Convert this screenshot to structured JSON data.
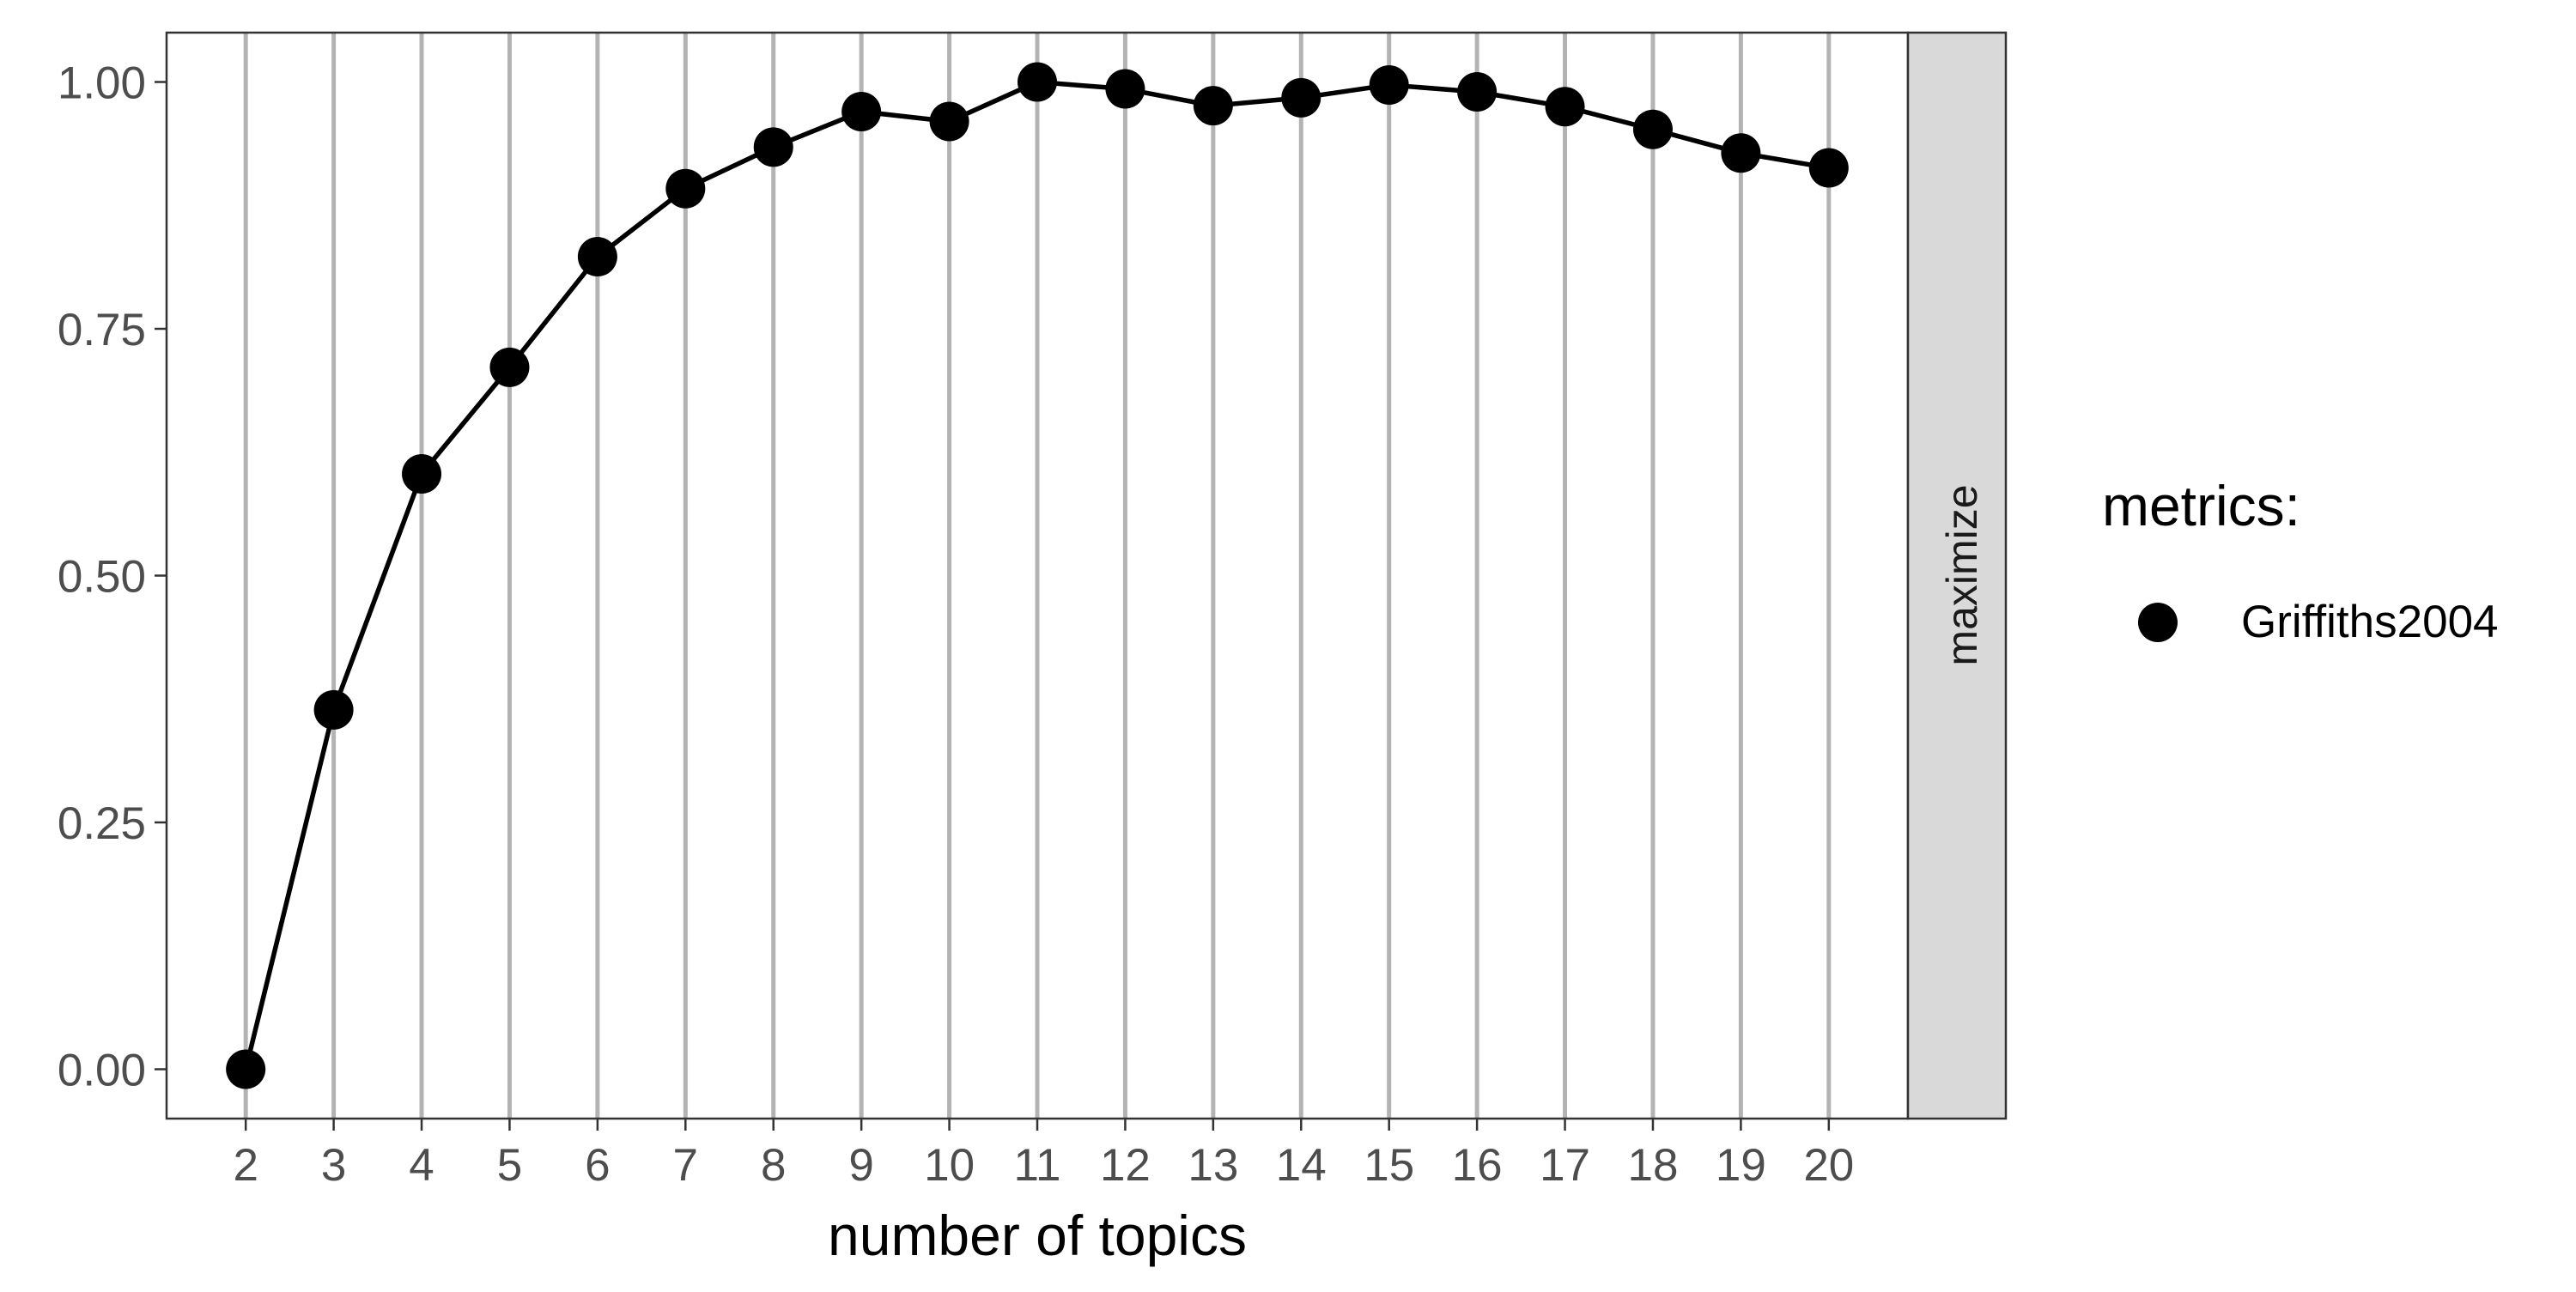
{
  "chart_data": {
    "type": "line",
    "xlabel": "number of topics",
    "ylabel": "",
    "xlim": [
      1.1,
      20.9
    ],
    "ylim": [
      -0.05,
      1.05
    ],
    "x_ticks": [
      2,
      3,
      4,
      5,
      6,
      7,
      8,
      9,
      10,
      11,
      12,
      13,
      14,
      15,
      16,
      17,
      18,
      19,
      20
    ],
    "x_tick_labels": [
      "2",
      "3",
      "4",
      "5",
      "6",
      "7",
      "8",
      "9",
      "10",
      "11",
      "12",
      "13",
      "14",
      "15",
      "16",
      "17",
      "18",
      "19",
      "20"
    ],
    "y_ticks": [
      0,
      0.25,
      0.5,
      0.75,
      1.0
    ],
    "y_tick_labels": [
      "0.00",
      "0.25",
      "0.50",
      "0.75",
      "1.00"
    ],
    "grid": "vertical major lines only",
    "facet_label": "maximize",
    "legend": {
      "title": "metrics:",
      "position": "right",
      "entries": [
        "Griffiths2004"
      ]
    },
    "series": [
      {
        "name": "Griffiths2004",
        "color": "#000000",
        "x": [
          2,
          3,
          4,
          5,
          6,
          7,
          8,
          9,
          10,
          11,
          12,
          13,
          14,
          15,
          16,
          17,
          18,
          19,
          20
        ],
        "values": [
          0.0,
          0.364,
          0.603,
          0.711,
          0.823,
          0.892,
          0.934,
          0.97,
          0.96,
          1.0,
          0.993,
          0.976,
          0.984,
          0.997,
          0.99,
          0.975,
          0.952,
          0.928,
          0.913
        ]
      }
    ]
  },
  "colors": {
    "panel_border": "#333333",
    "grid": "#b3b3b3",
    "strip_fill": "#d9d9d9",
    "tick_text": "#4d4d4d",
    "series": "#000000"
  }
}
